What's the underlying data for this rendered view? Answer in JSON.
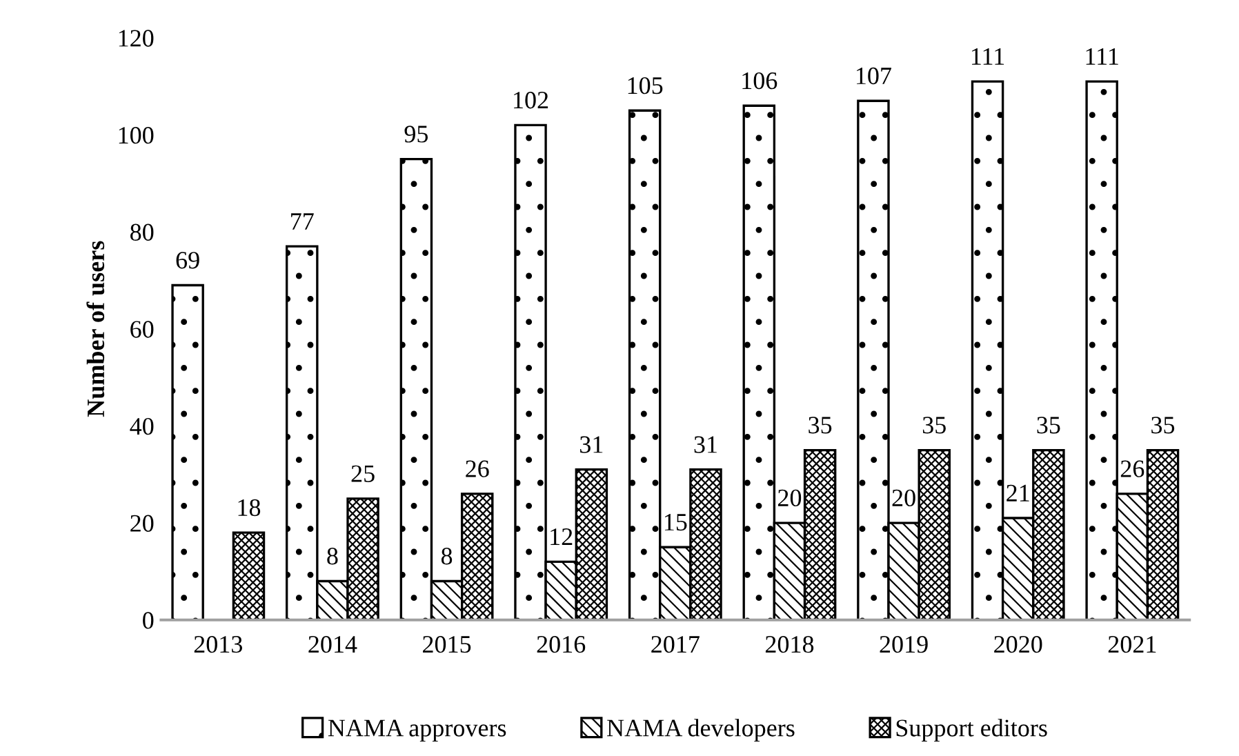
{
  "chart_data": {
    "type": "bar",
    "ylabel": "Number of users",
    "categories": [
      "2013",
      "2014",
      "2015",
      "2016",
      "2017",
      "2018",
      "2019",
      "2020",
      "2021"
    ],
    "series": [
      {
        "name": "NAMA approvers",
        "color": "#000000",
        "values": [
          69,
          77,
          95,
          102,
          105,
          106,
          107,
          111,
          111
        ]
      },
      {
        "name": "NAMA developers",
        "color": "#000000",
        "values": [
          null,
          8,
          8,
          12,
          15,
          20,
          20,
          21,
          26
        ]
      },
      {
        "name": "Support editors",
        "color": "#000000",
        "values": [
          18,
          25,
          26,
          31,
          31,
          35,
          35,
          35,
          35
        ]
      }
    ],
    "ylim": [
      0,
      120
    ],
    "yticks": [
      0,
      20,
      40,
      60,
      80,
      100,
      120
    ],
    "data_labels": true,
    "grid": false,
    "legend": "bottom"
  }
}
